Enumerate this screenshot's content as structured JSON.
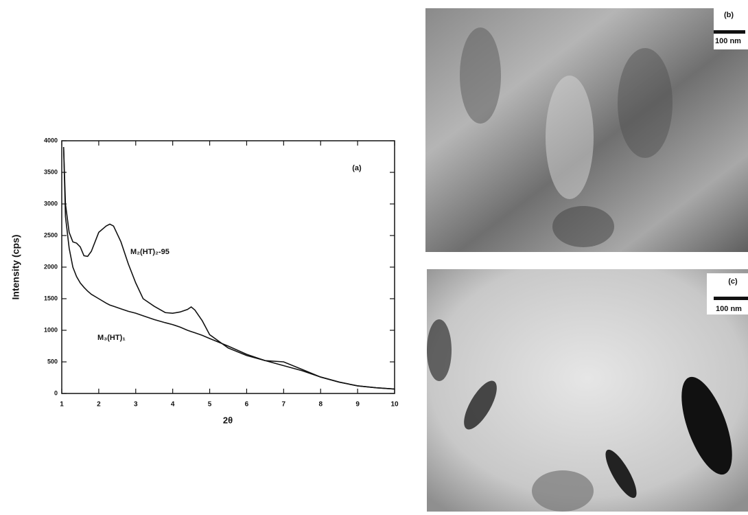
{
  "chart_data": {
    "type": "line",
    "annotation": "(a)",
    "x_label": "2θ",
    "y_label": "Intensity (cps)",
    "x": [
      1.05,
      1.1,
      1.2,
      1.3,
      1.4,
      1.5,
      1.6,
      1.7,
      1.8,
      2.0,
      2.2,
      2.3,
      2.4,
      2.6,
      2.8,
      3.0,
      3.2,
      3.5,
      3.8,
      4.0,
      4.2,
      4.4,
      4.5,
      4.6,
      4.8,
      5.0,
      5.5,
      6.0,
      6.5,
      7.0,
      7.5,
      8.0,
      8.5,
      9.0,
      9.5,
      10
    ],
    "series": [
      {
        "name": "M₂(HT)₂-95",
        "color": "#111111",
        "values": [
          3900,
          3000,
          2550,
          2400,
          2380,
          2320,
          2180,
          2170,
          2250,
          2550,
          2650,
          2680,
          2650,
          2400,
          2050,
          1750,
          1500,
          1380,
          1280,
          1270,
          1290,
          1330,
          1370,
          1320,
          1150,
          930,
          720,
          600,
          520,
          500,
          380,
          260,
          180,
          120,
          90,
          70
        ]
      },
      {
        "name": "M₃(HT)₁",
        "color": "#111111",
        "values": [
          3900,
          2800,
          2300,
          2000,
          1850,
          1750,
          1680,
          1620,
          1570,
          1500,
          1430,
          1400,
          1380,
          1340,
          1300,
          1270,
          1230,
          1170,
          1120,
          1090,
          1050,
          1000,
          980,
          960,
          920,
          870,
          750,
          620,
          520,
          440,
          360,
          260,
          180,
          120,
          90,
          70
        ]
      }
    ],
    "xlim": [
      1,
      10
    ],
    "xticks": [
      1,
      2,
      3,
      4,
      5,
      6,
      7,
      8,
      9,
      10
    ],
    "ylim": [
      0,
      4000
    ],
    "yticks": [
      0,
      500,
      1000,
      1500,
      2000,
      2500,
      3000,
      3500,
      4000
    ]
  },
  "images": [
    {
      "label": "(b)",
      "scale_bar": "100 nm"
    },
    {
      "label": "(c)",
      "scale_bar": "100 nm"
    }
  ]
}
